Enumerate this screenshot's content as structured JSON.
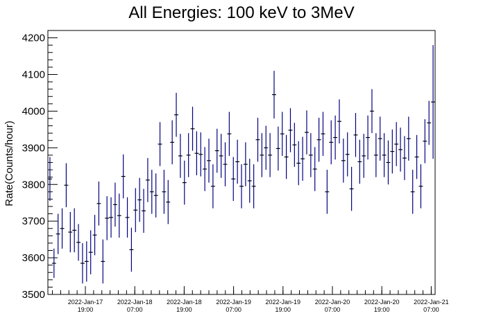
{
  "chart_data": {
    "type": "scatter",
    "title": "All Energies:  100 keV to 3MeV",
    "xlabel": "",
    "ylabel": "Rate(Counts/hour)",
    "ylim": [
      3500,
      4220
    ],
    "y_ticks": [
      3500,
      3600,
      3700,
      3800,
      3900,
      4000,
      4100,
      4200
    ],
    "x_ticks": [
      {
        "date": "2022-Jan-17",
        "time": "19:00"
      },
      {
        "date": "2022-Jan-18",
        "time": "07:00"
      },
      {
        "date": "2022-Jan-18",
        "time": "19:00"
      },
      {
        "date": "2022-Jan-19",
        "time": "07:00"
      },
      {
        "date": "2022-Jan-19",
        "time": "19:00"
      },
      {
        "date": "2022-Jan-20",
        "time": "07:00"
      },
      {
        "date": "2022-Jan-20",
        "time": "19:00"
      },
      {
        "date": "2022-Jan-21",
        "time": "07:00"
      }
    ],
    "grid": false,
    "marker_color": "#000080",
    "series": [
      {
        "points": [
          {
            "y": 3815,
            "err": 60
          },
          {
            "y": 3585,
            "err": 40
          },
          {
            "y": 3665,
            "err": 55
          },
          {
            "y": 3680,
            "err": 55
          },
          {
            "y": 3798,
            "err": 60
          },
          {
            "y": 3670,
            "err": 55
          },
          {
            "y": 3675,
            "err": 60
          },
          {
            "y": 3642,
            "err": 50
          },
          {
            "y": 3585,
            "err": 55
          },
          {
            "y": 3590,
            "err": 55
          },
          {
            "y": 3615,
            "err": 60
          },
          {
            "y": 3662,
            "err": 55
          },
          {
            "y": 3748,
            "err": 60
          },
          {
            "y": 3590,
            "err": 60
          },
          {
            "y": 3708,
            "err": 60
          },
          {
            "y": 3710,
            "err": 55
          },
          {
            "y": 3745,
            "err": 60
          },
          {
            "y": 3715,
            "err": 60
          },
          {
            "y": 3822,
            "err": 60
          },
          {
            "y": 3710,
            "err": 55
          },
          {
            "y": 3622,
            "err": 60
          },
          {
            "y": 3730,
            "err": 60
          },
          {
            "y": 3758,
            "err": 60
          },
          {
            "y": 3728,
            "err": 60
          },
          {
            "y": 3812,
            "err": 60
          },
          {
            "y": 3780,
            "err": 60
          },
          {
            "y": 3770,
            "err": 60
          },
          {
            "y": 3910,
            "err": 60
          },
          {
            "y": 3780,
            "err": 60
          },
          {
            "y": 3752,
            "err": 60
          },
          {
            "y": 3915,
            "err": 60
          },
          {
            "y": 3990,
            "err": 60
          },
          {
            "y": 3878,
            "err": 60
          },
          {
            "y": 3805,
            "err": 60
          },
          {
            "y": 3880,
            "err": 60
          },
          {
            "y": 3952,
            "err": 60
          },
          {
            "y": 3885,
            "err": 60
          },
          {
            "y": 3882,
            "err": 60
          },
          {
            "y": 3842,
            "err": 60
          },
          {
            "y": 3865,
            "err": 60
          },
          {
            "y": 3795,
            "err": 60
          },
          {
            "y": 3892,
            "err": 60
          },
          {
            "y": 3878,
            "err": 60
          },
          {
            "y": 3855,
            "err": 60
          },
          {
            "y": 3938,
            "err": 60
          },
          {
            "y": 3815,
            "err": 60
          },
          {
            "y": 3862,
            "err": 60
          },
          {
            "y": 3795,
            "err": 60
          },
          {
            "y": 3855,
            "err": 60
          },
          {
            "y": 3810,
            "err": 60
          },
          {
            "y": 3795,
            "err": 60
          },
          {
            "y": 3922,
            "err": 60
          },
          {
            "y": 3880,
            "err": 60
          },
          {
            "y": 3900,
            "err": 60
          },
          {
            "y": 3880,
            "err": 60
          },
          {
            "y": 4045,
            "err": 65
          },
          {
            "y": 3898,
            "err": 60
          },
          {
            "y": 3938,
            "err": 60
          },
          {
            "y": 3875,
            "err": 60
          },
          {
            "y": 3948,
            "err": 60
          },
          {
            "y": 3908,
            "err": 60
          },
          {
            "y": 3858,
            "err": 60
          },
          {
            "y": 3870,
            "err": 60
          },
          {
            "y": 3942,
            "err": 60
          },
          {
            "y": 3880,
            "err": 60
          },
          {
            "y": 3842,
            "err": 60
          },
          {
            "y": 3922,
            "err": 60
          },
          {
            "y": 3938,
            "err": 60
          },
          {
            "y": 3780,
            "err": 60
          },
          {
            "y": 3915,
            "err": 60
          },
          {
            "y": 3928,
            "err": 60
          },
          {
            "y": 3972,
            "err": 60
          },
          {
            "y": 3865,
            "err": 60
          },
          {
            "y": 3882,
            "err": 60
          },
          {
            "y": 3788,
            "err": 60
          },
          {
            "y": 3935,
            "err": 60
          },
          {
            "y": 3862,
            "err": 60
          },
          {
            "y": 3878,
            "err": 60
          },
          {
            "y": 3928,
            "err": 60
          },
          {
            "y": 4000,
            "err": 60
          },
          {
            "y": 3880,
            "err": 60
          },
          {
            "y": 3925,
            "err": 60
          },
          {
            "y": 3880,
            "err": 60
          },
          {
            "y": 3860,
            "err": 60
          },
          {
            "y": 3890,
            "err": 60
          },
          {
            "y": 3910,
            "err": 60
          },
          {
            "y": 3895,
            "err": 60
          },
          {
            "y": 3872,
            "err": 60
          },
          {
            "y": 3925,
            "err": 60
          },
          {
            "y": 3780,
            "err": 60
          },
          {
            "y": 3875,
            "err": 60
          },
          {
            "y": 3795,
            "err": 60
          },
          {
            "y": 3918,
            "err": 60
          },
          {
            "y": 3968,
            "err": 60
          },
          {
            "y": 4025,
            "err": 155
          }
        ]
      }
    ]
  }
}
